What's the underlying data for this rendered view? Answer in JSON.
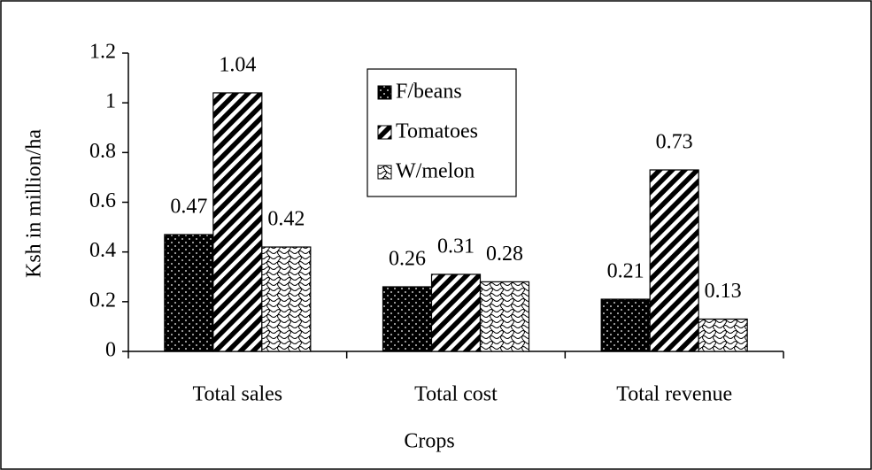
{
  "chart_data": {
    "type": "bar",
    "x_label": "Crops",
    "y_label": "Ksh in million/ha",
    "categories": [
      "Total sales",
      "Total cost",
      "Total revenue"
    ],
    "series": [
      {
        "name": "F/beans",
        "color": "#000000",
        "values": [
          0.47,
          0.26,
          0.21
        ]
      },
      {
        "name": "Tomatoes",
        "color": "#000000",
        "values": [
          1.04,
          0.31,
          0.73
        ]
      },
      {
        "name": "W/melon",
        "color": "#000000",
        "values": [
          0.42,
          0.28,
          0.13
        ]
      }
    ],
    "ylim": [
      0,
      1.2
    ],
    "yticks": [
      0,
      0.2,
      0.4,
      0.6,
      0.8,
      1,
      1.2
    ],
    "legend": "top",
    "grid": false
  }
}
